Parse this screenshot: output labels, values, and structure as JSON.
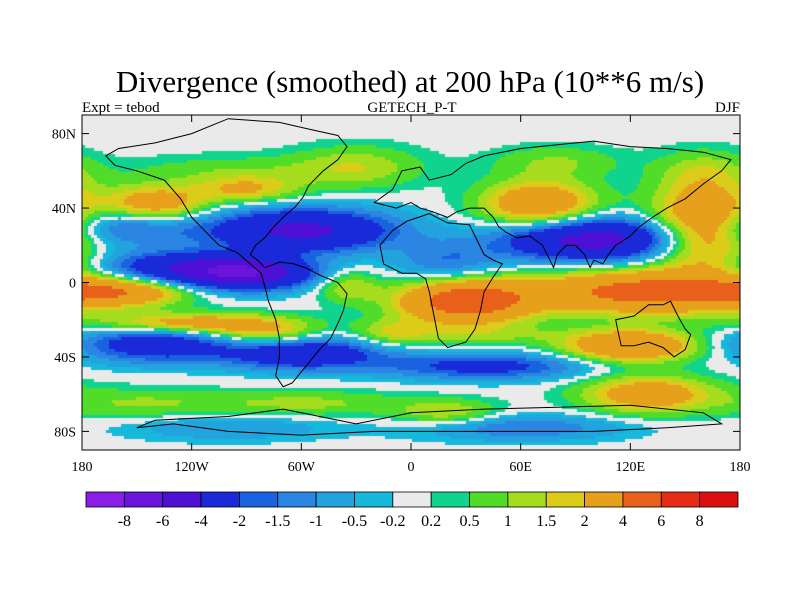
{
  "chart_data": {
    "type": "heatmap",
    "title": "Divergence (smoothed) at 200 hPa (10**6 m/s)",
    "left_label": "Expt = tebod",
    "center_label": "GETECH_P-T",
    "right_label": "DJF",
    "xlim": [
      -180,
      180
    ],
    "ylim": [
      -90,
      90
    ],
    "x_ticks": [
      {
        "value": -180,
        "label": "180"
      },
      {
        "value": -120,
        "label": "120W"
      },
      {
        "value": -60,
        "label": "60W"
      },
      {
        "value": 0,
        "label": "0"
      },
      {
        "value": 60,
        "label": "60E"
      },
      {
        "value": 120,
        "label": "120E"
      },
      {
        "value": 180,
        "label": "180"
      }
    ],
    "y_ticks": [
      {
        "value": 80,
        "label": "80N"
      },
      {
        "value": 40,
        "label": "40N"
      },
      {
        "value": 0,
        "label": "0"
      },
      {
        "value": -40,
        "label": "40S"
      },
      {
        "value": -80,
        "label": "80S"
      }
    ],
    "contour_levels": [
      -8,
      -6,
      -4,
      -2,
      -1.5,
      -1,
      -0.5,
      -0.2,
      0.2,
      0.5,
      1,
      1.5,
      2,
      4,
      6,
      8
    ],
    "colorbar_labels": [
      "-8",
      "-6",
      "-4",
      "-2",
      "-1.5",
      "-1",
      "-0.5",
      "-0.2",
      "0.2",
      "0.5",
      "1",
      "1.5",
      "2",
      "4",
      "6",
      "8"
    ],
    "colors": [
      "#8a1ee6",
      "#6a14dc",
      "#4d10d4",
      "#1a2ad8",
      "#1a63e0",
      "#2a86e2",
      "#22a3de",
      "#16b8dc",
      "#eaeaea",
      "#10d48e",
      "#52dc2a",
      "#a6dc1e",
      "#dccc1a",
      "#e6a01c",
      "#e8601a",
      "#e62c16",
      "#dc0f0f"
    ],
    "features": [
      {
        "lon": -100,
        "lat": 60,
        "amp": 0.8,
        "sx": 40,
        "sy": 6
      },
      {
        "lon": -30,
        "lat": 62,
        "amp": 1.4,
        "sx": 25,
        "sy": 8
      },
      {
        "lon": 80,
        "lat": 65,
        "amp": 1.0,
        "sx": 25,
        "sy": 6
      },
      {
        "lon": 160,
        "lat": 60,
        "amp": 1.0,
        "sx": 18,
        "sy": 8
      },
      {
        "lon": -140,
        "lat": 42,
        "amp": 3.0,
        "sx": 20,
        "sy": 7
      },
      {
        "lon": -90,
        "lat": 50,
        "amp": 2.0,
        "sx": 20,
        "sy": 5
      },
      {
        "lon": 70,
        "lat": 42,
        "amp": 3.5,
        "sx": 22,
        "sy": 9
      },
      {
        "lon": 160,
        "lat": 30,
        "amp": 4.0,
        "sx": 20,
        "sy": 16
      },
      {
        "lon": -160,
        "lat": 30,
        "amp": -2.0,
        "sx": 30,
        "sy": 7
      },
      {
        "lon": -60,
        "lat": 28,
        "amp": -4.5,
        "sx": 35,
        "sy": 8
      },
      {
        "lon": 100,
        "lat": 23,
        "amp": -5.0,
        "sx": 35,
        "sy": 8
      },
      {
        "lon": 20,
        "lat": 10,
        "amp": -1.5,
        "sx": 20,
        "sy": 8
      },
      {
        "lon": -130,
        "lat": 8,
        "amp": -3.0,
        "sx": 30,
        "sy": 6
      },
      {
        "lon": -90,
        "lat": 5,
        "amp": -5.5,
        "sx": 25,
        "sy": 6
      },
      {
        "lon": -160,
        "lat": -5,
        "amp": 3.0,
        "sx": 25,
        "sy": 5
      },
      {
        "lon": -35,
        "lat": -2,
        "amp": 1.5,
        "sx": 12,
        "sy": 6
      },
      {
        "lon": 30,
        "lat": -10,
        "amp": 5.5,
        "sx": 25,
        "sy": 8
      },
      {
        "lon": 130,
        "lat": -5,
        "amp": 5.0,
        "sx": 45,
        "sy": 8
      },
      {
        "lon": -120,
        "lat": -22,
        "amp": 3.0,
        "sx": 35,
        "sy": 4
      },
      {
        "lon": -10,
        "lat": -27,
        "amp": 1.5,
        "sx": 15,
        "sy": 5
      },
      {
        "lon": 40,
        "lat": -28,
        "amp": 1.0,
        "sx": 30,
        "sy": 4
      },
      {
        "lon": -80,
        "lat": -28,
        "amp": 2.0,
        "sx": 20,
        "sy": 5
      },
      {
        "lon": -140,
        "lat": -33,
        "amp": -3.0,
        "sx": 30,
        "sy": 7
      },
      {
        "lon": -60,
        "lat": -38,
        "amp": -3.5,
        "sx": 30,
        "sy": 6
      },
      {
        "lon": 40,
        "lat": -45,
        "amp": -2.5,
        "sx": 40,
        "sy": 5
      },
      {
        "lon": 120,
        "lat": -34,
        "amp": 4.0,
        "sx": 25,
        "sy": 6
      },
      {
        "lon": 130,
        "lat": -60,
        "amp": 3.0,
        "sx": 25,
        "sy": 7
      },
      {
        "lon": -60,
        "lat": -65,
        "amp": 1.2,
        "sx": 40,
        "sy": 5
      },
      {
        "lon": 20,
        "lat": -70,
        "amp": 1.5,
        "sx": 20,
        "sy": 5
      },
      {
        "lon": -150,
        "lat": -65,
        "amp": 1.0,
        "sx": 30,
        "sy": 6
      },
      {
        "lon": -100,
        "lat": -78,
        "amp": -1.0,
        "sx": 40,
        "sy": 5
      },
      {
        "lon": 60,
        "lat": -78,
        "amp": -1.5,
        "sx": 40,
        "sy": 5
      }
    ],
    "coastlines": [
      [
        [
          -100,
          88
        ],
        [
          -72,
          86
        ],
        [
          -54,
          82
        ],
        [
          -40,
          79
        ],
        [
          -35,
          73
        ],
        [
          -40,
          66
        ],
        [
          -48,
          60
        ],
        [
          -56,
          52
        ],
        [
          -59,
          46
        ],
        [
          -63,
          41
        ],
        [
          -70,
          35
        ],
        [
          -75,
          30
        ],
        [
          -80,
          24
        ],
        [
          -85,
          20
        ],
        [
          -88,
          15
        ],
        [
          -84,
          12
        ],
        [
          -82,
          10
        ],
        [
          -80,
          8
        ],
        [
          -77,
          9
        ],
        [
          -72,
          11
        ],
        [
          -64,
          10
        ],
        [
          -58,
          8
        ],
        [
          -50,
          4
        ],
        [
          -40,
          0
        ],
        [
          -35,
          -6
        ],
        [
          -37,
          -15
        ],
        [
          -40,
          -22
        ],
        [
          -44,
          -30
        ],
        [
          -50,
          -36
        ],
        [
          -55,
          -42
        ],
        [
          -60,
          -48
        ],
        [
          -65,
          -54
        ],
        [
          -70,
          -56
        ],
        [
          -74,
          -50
        ],
        [
          -72,
          -40
        ],
        [
          -72,
          -30
        ],
        [
          -74,
          -20
        ],
        [
          -78,
          -10
        ],
        [
          -80,
          -2
        ],
        [
          -82,
          5
        ],
        [
          -88,
          10
        ],
        [
          -95,
          16
        ],
        [
          -105,
          20
        ],
        [
          -110,
          25
        ],
        [
          -115,
          30
        ],
        [
          -120,
          35
        ],
        [
          -126,
          45
        ],
        [
          -135,
          55
        ],
        [
          -150,
          60
        ],
        [
          -162,
          63
        ],
        [
          -167,
          68
        ],
        [
          -160,
          72
        ],
        [
          -140,
          75
        ],
        [
          -120,
          80
        ],
        [
          -100,
          88
        ]
      ],
      [
        [
          -20,
          43
        ],
        [
          -10,
          50
        ],
        [
          -5,
          60
        ],
        [
          5,
          62
        ],
        [
          10,
          55
        ],
        [
          22,
          58
        ],
        [
          30,
          64
        ],
        [
          40,
          68
        ],
        [
          60,
          72
        ],
        [
          80,
          74
        ],
        [
          100,
          76
        ],
        [
          120,
          73
        ],
        [
          140,
          72
        ],
        [
          160,
          70
        ],
        [
          175,
          66
        ],
        [
          170,
          60
        ],
        [
          160,
          53
        ],
        [
          150,
          45
        ],
        [
          140,
          40
        ],
        [
          132,
          35
        ],
        [
          125,
          30
        ],
        [
          120,
          25
        ],
        [
          112,
          20
        ],
        [
          108,
          15
        ],
        [
          105,
          10
        ],
        [
          100,
          12
        ],
        [
          98,
          8
        ],
        [
          95,
          15
        ],
        [
          90,
          20
        ],
        [
          85,
          20
        ],
        [
          80,
          15
        ],
        [
          78,
          8
        ],
        [
          72,
          20
        ],
        [
          65,
          25
        ],
        [
          58,
          24
        ],
        [
          52,
          27
        ],
        [
          48,
          30
        ],
        [
          45,
          35
        ],
        [
          40,
          40
        ],
        [
          32,
          40
        ],
        [
          25,
          38
        ],
        [
          20,
          35
        ],
        [
          12,
          38
        ],
        [
          5,
          40
        ],
        [
          0,
          43
        ],
        [
          -8,
          40
        ],
        [
          -20,
          43
        ]
      ],
      [
        [
          -2,
          33
        ],
        [
          10,
          37
        ],
        [
          20,
          32
        ],
        [
          32,
          31
        ],
        [
          35,
          25
        ],
        [
          40,
          15
        ],
        [
          45,
          12
        ],
        [
          50,
          10
        ],
        [
          45,
          3
        ],
        [
          40,
          -5
        ],
        [
          38,
          -15
        ],
        [
          35,
          -25
        ],
        [
          30,
          -32
        ],
        [
          20,
          -35
        ],
        [
          15,
          -30
        ],
        [
          12,
          -15
        ],
        [
          10,
          -5
        ],
        [
          8,
          2
        ],
        [
          3,
          5
        ],
        [
          -5,
          5
        ],
        [
          -15,
          10
        ],
        [
          -17,
          20
        ],
        [
          -10,
          28
        ],
        [
          -2,
          33
        ]
      ],
      [
        [
          112,
          -20
        ],
        [
          122,
          -18
        ],
        [
          130,
          -12
        ],
        [
          138,
          -12
        ],
        [
          142,
          -10
        ],
        [
          146,
          -18
        ],
        [
          150,
          -25
        ],
        [
          153,
          -28
        ],
        [
          150,
          -36
        ],
        [
          144,
          -40
        ],
        [
          138,
          -35
        ],
        [
          130,
          -32
        ],
        [
          122,
          -34
        ],
        [
          115,
          -34
        ],
        [
          113,
          -25
        ],
        [
          112,
          -20
        ]
      ],
      [
        [
          -60,
          -70
        ],
        [
          -30,
          -76
        ],
        [
          0,
          -70
        ],
        [
          40,
          -68
        ],
        [
          80,
          -67
        ],
        [
          120,
          -66
        ],
        [
          160,
          -70
        ],
        [
          170,
          -76
        ],
        [
          140,
          -78
        ],
        [
          100,
          -80
        ],
        [
          40,
          -80
        ],
        [
          -20,
          -80
        ],
        [
          -60,
          -82
        ],
        [
          -100,
          -80
        ],
        [
          -130,
          -76
        ],
        [
          -150,
          -78
        ],
        [
          -140,
          -74
        ],
        [
          -100,
          -72
        ],
        [
          -70,
          -68
        ],
        [
          -60,
          -70
        ]
      ]
    ]
  }
}
